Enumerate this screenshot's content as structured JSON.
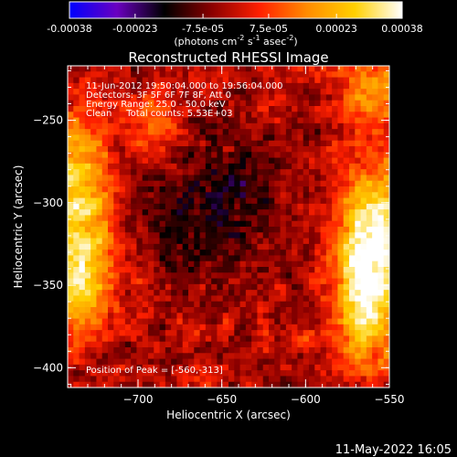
{
  "colorbar": {
    "ticks": [
      "-0.00038",
      "-0.00023",
      "-7.5e-05",
      "7.5e-05",
      "0.00023",
      "0.00038"
    ],
    "unit_label": {
      "prefix": "(photons cm",
      "exp1": "-2",
      "mid1": " s",
      "exp2": "-1",
      "mid2": " asec",
      "exp3": "-2",
      "suffix": ")"
    },
    "colormap_stops": [
      "#0000ff",
      "#6a00c0",
      "#000000",
      "#8b0000",
      "#ff2000",
      "#ff8c00",
      "#ffd000",
      "#ffffff"
    ]
  },
  "chart_data": {
    "type": "heatmap",
    "title": "Reconstructed RHESSI Image",
    "xlabel": "Heliocentric X (arcsec)",
    "ylabel": "Heliocentric Y (arcsec)",
    "xlim": [
      -742,
      -550
    ],
    "ylim": [
      -412,
      -217
    ],
    "x_ticks": [
      -700,
      -650,
      -600,
      -550
    ],
    "y_ticks": [
      -400,
      -350,
      -300,
      -250
    ],
    "x_tick_labels": [
      "−700",
      "−650",
      "−600",
      "−550"
    ],
    "y_tick_labels": [
      "−400",
      "−350",
      "−300",
      "−250"
    ],
    "value_range": [
      -0.00038,
      0.00038
    ],
    "peak_position": [
      -560,
      -313
    ],
    "annotations": [
      "11-Jun-2012 19:50:04.000 to 19:56:04.000",
      "Detectors: 3F 5F 6F 7F 8F, Att 0",
      "Energy Range: 25.0 - 50.0 keV",
      "Clean     Total counts: 5.53E+03"
    ],
    "peak_label": "Position of Peak = [-560,-313]"
  },
  "footer_timestamp": "11-May-2022 16:05"
}
